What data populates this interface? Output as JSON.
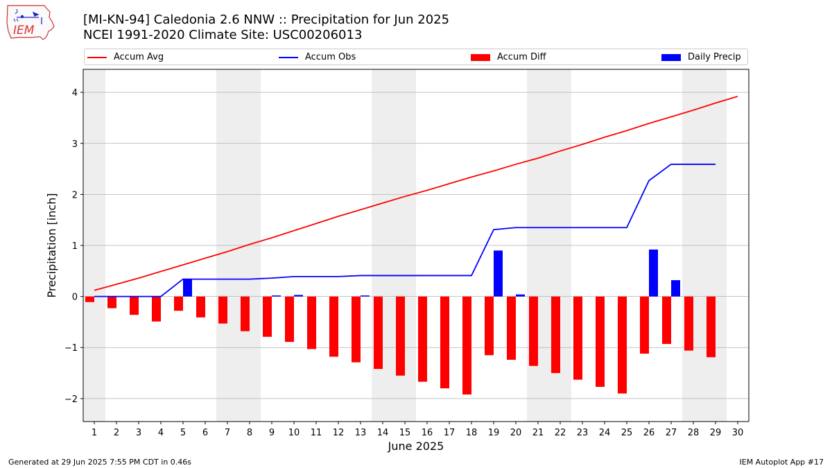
{
  "header": {
    "title_line1": "[MI-KN-94] Caledonia 2.6 NNW :: Precipitation for Jun 2025",
    "title_line2": "NCEI 1991-2020 Climate Site: USC00206013",
    "logo_text": "IEM"
  },
  "footer": {
    "left": "Generated at 29 Jun 2025 7:55 PM CDT in 0.46s",
    "right": "IEM Autoplot App #17"
  },
  "colors": {
    "avg": "#ff0000",
    "obs": "#0000ff",
    "diff": "#ff0000",
    "daily": "#0000ff",
    "weekend_shade": "#eeeeee",
    "grid": "#b0b0b0"
  },
  "chart_data": {
    "type": "bar",
    "title": "[MI-KN-94] Caledonia 2.6 NNW :: Precipitation for Jun 2025",
    "xlabel": "June 2025",
    "ylabel": "Precipitation [inch]",
    "grid": true,
    "legend_position": "top",
    "xlim": [
      0.5,
      30.5
    ],
    "ylim": [
      -2.45,
      4.45
    ],
    "yticks": [
      -2,
      -1,
      0,
      1,
      2,
      3,
      4
    ],
    "ytick_labels": [
      "−2",
      "−1",
      "0",
      "1",
      "2",
      "3",
      "4"
    ],
    "days": [
      1,
      2,
      3,
      4,
      5,
      6,
      7,
      8,
      9,
      10,
      11,
      12,
      13,
      14,
      15,
      16,
      17,
      18,
      19,
      20,
      21,
      22,
      23,
      24,
      25,
      26,
      27,
      28,
      29,
      30
    ],
    "xtick_labels": [
      "1",
      "2",
      "3",
      "4",
      "5",
      "6",
      "7",
      "8",
      "9",
      "10",
      "11",
      "12",
      "13",
      "14",
      "15",
      "16",
      "17",
      "18",
      "19",
      "20",
      "21",
      "22",
      "23",
      "24",
      "25",
      "26",
      "27",
      "28",
      "29",
      "30"
    ],
    "weekend_days": [
      1,
      7,
      8,
      14,
      15,
      21,
      22,
      28,
      29
    ],
    "series": [
      {
        "name": "Accum Avg",
        "kind": "line",
        "values": [
          0.12,
          0.24,
          0.36,
          0.49,
          0.62,
          0.75,
          0.88,
          1.02,
          1.15,
          1.29,
          1.43,
          1.57,
          1.7,
          1.83,
          1.96,
          2.08,
          2.21,
          2.34,
          2.46,
          2.59,
          2.71,
          2.85,
          2.98,
          3.12,
          3.25,
          3.39,
          3.52,
          3.65,
          3.79,
          3.92
        ]
      },
      {
        "name": "Accum Obs",
        "kind": "line",
        "values": [
          0.0,
          0.0,
          0.0,
          0.0,
          0.34,
          0.34,
          0.34,
          0.34,
          0.36,
          0.39,
          0.39,
          0.39,
          0.41,
          0.41,
          0.41,
          0.41,
          0.41,
          0.41,
          1.31,
          1.35,
          1.35,
          1.35,
          1.35,
          1.35,
          1.35,
          2.27,
          2.59,
          2.59,
          2.59
        ]
      },
      {
        "name": "Accum Diff",
        "kind": "bar",
        "values": [
          -0.11,
          -0.23,
          -0.36,
          -0.49,
          -0.28,
          -0.41,
          -0.53,
          -0.68,
          -0.79,
          -0.89,
          -1.03,
          -1.18,
          -1.29,
          -1.42,
          -1.55,
          -1.67,
          -1.8,
          -1.92,
          -1.15,
          -1.24,
          -1.36,
          -1.5,
          -1.63,
          -1.77,
          -1.9,
          -1.12,
          -0.93,
          -1.06,
          -1.19
        ]
      },
      {
        "name": "Daily Precip",
        "kind": "bar",
        "values": [
          0.0,
          0.0,
          0.0,
          0.0,
          0.34,
          0.0,
          0.0,
          0.0,
          0.02,
          0.03,
          0.0,
          0.0,
          0.02,
          0.0,
          0.0,
          0.0,
          0.0,
          0.0,
          0.9,
          0.04,
          0.0,
          0.0,
          0.0,
          0.0,
          0.0,
          0.92,
          0.32,
          0.0,
          0.0
        ]
      }
    ]
  }
}
